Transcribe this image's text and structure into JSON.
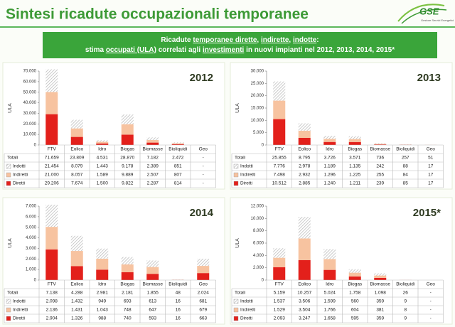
{
  "header": {
    "title": "Sintesi ricadute occupazionali temporanee",
    "logo": "GSE",
    "logo_subtitle": "Gestore Servizi Energetici"
  },
  "banner": {
    "lines": [
      [
        {
          "text": "Ricadute ",
          "underline": false
        },
        {
          "text": "temporanee dirette",
          "underline": true
        },
        {
          "text": ", ",
          "underline": false
        },
        {
          "text": "indirette",
          "underline": true
        },
        {
          "text": ", ",
          "underline": false
        },
        {
          "text": "indotte",
          "underline": true
        },
        {
          "text": ":",
          "underline": false
        }
      ],
      [
        {
          "text": "stima ",
          "underline": false
        },
        {
          "text": "occupati (ULA)",
          "underline": true
        },
        {
          "text": " correlati agli ",
          "underline": false
        },
        {
          "text": "investimenti",
          "underline": true
        },
        {
          "text": " in nuovi impianti nel 2012, 2013, 2014, 2015*",
          "underline": false
        }
      ]
    ]
  },
  "chart_data": [
    {
      "type": "stacked_bar",
      "title": "2012",
      "ylabel": "ULA",
      "categories": [
        "FTV",
        "Eolico",
        "Idro",
        "Biogas",
        "Biomasse",
        "Bioliquidi",
        "Geo"
      ],
      "ylim": [
        0,
        70000
      ],
      "yticks": [
        0,
        {
          "value": 10000,
          "label": "10.000"
        },
        {
          "value": 20000,
          "label": "20.000"
        },
        {
          "value": 30000,
          "label": "30.000"
        },
        {
          "value": 40000,
          "label": "40.000"
        },
        {
          "value": 50000,
          "label": "50.000"
        },
        {
          "value": 60000,
          "label": "60.000"
        },
        {
          "value": 70000,
          "label": "70.000"
        }
      ],
      "grid": false,
      "totals": {
        "name": "Totali",
        "labels": [
          "71.659",
          "23.809",
          "4.531",
          "28.870",
          "7.182",
          "2.472",
          "-"
        ]
      },
      "series": [
        {
          "name": "Indotti",
          "color": "#b5b5b5",
          "pattern": "hatch",
          "values": [
            21454,
            8079,
            1443,
            9178,
            2389,
            851,
            null
          ],
          "value_labels": [
            "21.454",
            "8.079",
            "1.443",
            "9.178",
            "2.389",
            "851",
            "-"
          ]
        },
        {
          "name": "Indiretti",
          "color": "#f7c3a0",
          "values": [
            21000,
            8057,
            1589,
            9889,
            2507,
            807,
            null
          ],
          "value_labels": [
            "21.000",
            "8.057",
            "1.589",
            "9.889",
            "2.507",
            "807",
            "-"
          ]
        },
        {
          "name": "Diretti",
          "color": "#e3201b",
          "values": [
            29206,
            7674,
            1500,
            9822,
            2287,
            814,
            null
          ],
          "value_labels": [
            "29.206",
            "7.674",
            "1.500",
            "9.822",
            "2.287",
            "814",
            "-"
          ]
        }
      ]
    },
    {
      "type": "stacked_bar",
      "title": "2013",
      "ylabel": "ULA",
      "categories": [
        "FTV",
        "Eolico",
        "Idro",
        "Biogas",
        "Biomasse",
        "Bioliquidi",
        "Geo"
      ],
      "ylim": [
        0,
        30000
      ],
      "yticks": [
        0,
        {
          "value": 5000,
          "label": "5.000"
        },
        {
          "value": 10000,
          "label": "10.000"
        },
        {
          "value": 15000,
          "label": "15.000"
        },
        {
          "value": 20000,
          "label": "20.000"
        },
        {
          "value": 25000,
          "label": "25.000"
        },
        {
          "value": 30000,
          "label": "30.000"
        }
      ],
      "grid": false,
      "totals": {
        "name": "Totali",
        "labels": [
          "25.855",
          "8.795",
          "3.726",
          "3.571",
          "736",
          "257",
          "51"
        ]
      },
      "series": [
        {
          "name": "Indotti",
          "color": "#b5b5b5",
          "pattern": "hatch",
          "values": [
            7776,
            2978,
            1189,
            1135,
            242,
            88,
            17
          ],
          "value_labels": [
            "7.776",
            "2.978",
            "1.189",
            "1.135",
            "242",
            "88",
            "17"
          ]
        },
        {
          "name": "Indiretti",
          "color": "#f7c3a0",
          "values": [
            7498,
            2932,
            1296,
            1225,
            255,
            84,
            17
          ],
          "value_labels": [
            "7.498",
            "2.932",
            "1.296",
            "1.225",
            "255",
            "84",
            "17"
          ]
        },
        {
          "name": "Diretti",
          "color": "#e3201b",
          "values": [
            10512,
            2885,
            1240,
            1211,
            239,
            85,
            17
          ],
          "value_labels": [
            "10.512",
            "2.885",
            "1.240",
            "1.211",
            "239",
            "85",
            "17"
          ]
        }
      ]
    },
    {
      "type": "stacked_bar",
      "title": "2014",
      "ylabel": "ULA",
      "categories": [
        "FTV",
        "Eolico",
        "Idro",
        "Biogas",
        "Biomasse",
        "Bioliquidi",
        "Geo"
      ],
      "ylim": [
        0,
        7000
      ],
      "yticks": [
        0,
        {
          "value": 1000,
          "label": "1.000"
        },
        {
          "value": 2000,
          "label": "2.000"
        },
        {
          "value": 3000,
          "label": "3.000"
        },
        {
          "value": 4000,
          "label": "4.000"
        },
        {
          "value": 5000,
          "label": "5.000"
        },
        {
          "value": 6000,
          "label": "6.000"
        },
        {
          "value": 7000,
          "label": "7.000"
        }
      ],
      "grid": false,
      "totals": {
        "name": "Totali",
        "labels": [
          "7.138",
          "4.288",
          "2.981",
          "2.181",
          "1.855",
          "48",
          "2.024"
        ]
      },
      "series": [
        {
          "name": "Indotti",
          "color": "#b5b5b5",
          "pattern": "hatch",
          "values": [
            2098,
            1432,
            949,
            693,
            613,
            16,
            681
          ],
          "value_labels": [
            "2.098",
            "1.432",
            "949",
            "693",
            "613",
            "16",
            "681"
          ]
        },
        {
          "name": "Indiretti",
          "color": "#f7c3a0",
          "values": [
            2136,
            1431,
            1043,
            748,
            647,
            16,
            679
          ],
          "value_labels": [
            "2.136",
            "1.431",
            "1.043",
            "748",
            "647",
            "16",
            "679"
          ]
        },
        {
          "name": "Diretti",
          "color": "#e3201b",
          "values": [
            2904,
            1326,
            988,
            740,
            593,
            16,
            663
          ],
          "value_labels": [
            "2.904",
            "1.326",
            "988",
            "740",
            "593",
            "16",
            "663"
          ]
        }
      ]
    },
    {
      "type": "stacked_bar",
      "title": "2015*",
      "ylabel": "ULA",
      "categories": [
        "FTV",
        "Eolico",
        "Idro",
        "Biogas",
        "Biomasse",
        "Bioliquidi",
        "Geo"
      ],
      "ylim": [
        0,
        12000
      ],
      "yticks": [
        0,
        {
          "value": 2000,
          "label": "2.000"
        },
        {
          "value": 4000,
          "label": "4.000"
        },
        {
          "value": 6000,
          "label": "6.000"
        },
        {
          "value": 8000,
          "label": "8.000"
        },
        {
          "value": 10000,
          "label": "10.000"
        },
        {
          "value": 12000,
          "label": "12.000"
        }
      ],
      "grid": false,
      "totals": {
        "name": "Totali",
        "labels": [
          "5.159",
          "10.257",
          "5.024",
          "1.758",
          "1.098",
          "26",
          "-"
        ]
      },
      "series": [
        {
          "name": "Indotti",
          "color": "#b5b5b5",
          "pattern": "hatch",
          "values": [
            1537,
            3506,
            1599,
            560,
            359,
            9,
            null
          ],
          "value_labels": [
            "1.537",
            "3.506",
            "1.599",
            "560",
            "359",
            "9",
            "-"
          ]
        },
        {
          "name": "Indiretti",
          "color": "#f7c3a0",
          "values": [
            1529,
            3504,
            1766,
            604,
            381,
            8,
            null
          ],
          "value_labels": [
            "1.529",
            "3.504",
            "1.766",
            "604",
            "381",
            "8",
            "-"
          ]
        },
        {
          "name": "Diretti",
          "color": "#e3201b",
          "values": [
            2093,
            3247,
            1658,
            595,
            359,
            9,
            null
          ],
          "value_labels": [
            "2.093",
            "3.247",
            "1.658",
            "595",
            "359",
            "9",
            "-"
          ]
        }
      ]
    }
  ]
}
